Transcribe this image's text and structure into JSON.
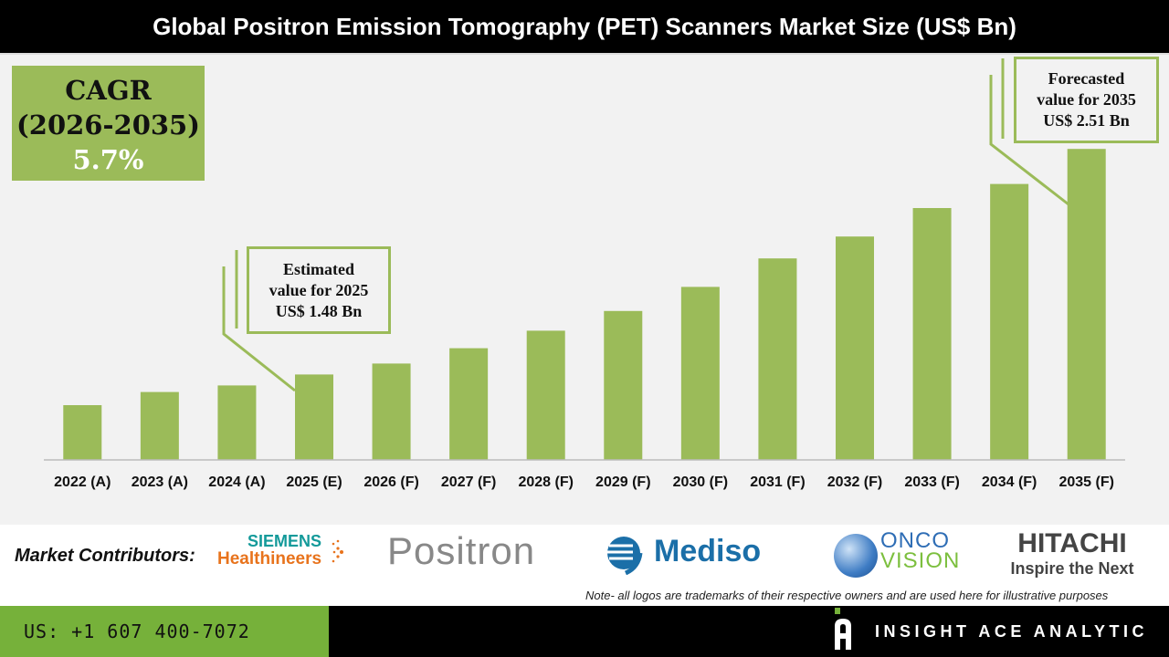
{
  "title": "Global Positron Emission Tomography (PET) Scanners Market Size (US$ Bn)",
  "cagr": {
    "label": "CAGR",
    "period": "(2026-2035)",
    "value": "5.7%"
  },
  "callouts": {
    "estimated": [
      "Estimated",
      "value for 2025",
      "US$ 1.48 Bn"
    ],
    "forecast": [
      "Forecasted",
      "value for 2035",
      "US$ 2.51 Bn"
    ]
  },
  "chart_data": {
    "type": "bar",
    "title": "Global Positron Emission Tomography (PET) Scanners Market Size (US$ Bn)",
    "categories": [
      "2022 (A)",
      "2023 (A)",
      "2024 (A)",
      "2025 (E)",
      "2026 (F)",
      "2027 (F)",
      "2028 (F)",
      "2029 (F)",
      "2030 (F)",
      "2031 (F)",
      "2032 (F)",
      "2033 (F)",
      "2034 (F)",
      "2035 (F)"
    ],
    "values": [
      1.34,
      1.4,
      1.43,
      1.48,
      1.53,
      1.6,
      1.68,
      1.77,
      1.88,
      2.01,
      2.11,
      2.24,
      2.35,
      2.51
    ],
    "ylim": [
      1.09,
      2.94
    ],
    "grid": false,
    "bar_color": "#9bbb59"
  },
  "footer": {
    "contributors_label": "Market Contributors:",
    "logos": {
      "siemens_top": "SIEMENS",
      "siemens_bottom": "Healthineers",
      "positron": "Positron",
      "mediso": "Mediso",
      "onco_top": "ONCO",
      "onco_bottom": "VISION",
      "hitachi_top": "HITACHI",
      "hitachi_bottom": "Inspire the Next"
    },
    "note": "Note- all logos are trademarks of their respective owners and are used here for illustrative purposes",
    "phone": "US: +1 607 400-7072",
    "brand": "INSIGHT ACE ANALYTIC"
  },
  "colors": {
    "accent": "#9bbb59",
    "phone_bg": "#76b13a",
    "header_bg": "#000000"
  }
}
